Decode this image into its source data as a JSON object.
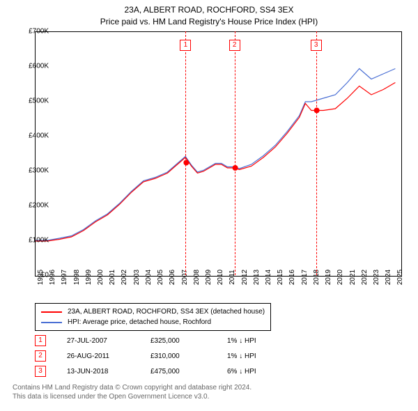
{
  "title": {
    "line1": "23A, ALBERT ROAD, ROCHFORD, SS4 3EX",
    "line2": "Price paid vs. HM Land Registry's House Price Index (HPI)"
  },
  "chart": {
    "type": "line",
    "background_color": "#ffffff",
    "border_color": "#000000",
    "xlim": [
      1995,
      2025.5
    ],
    "ylim": [
      0,
      700000
    ],
    "ytick_step": 100000,
    "y_labels": [
      "£0",
      "£100K",
      "£200K",
      "£300K",
      "£400K",
      "£500K",
      "£600K",
      "£700K"
    ],
    "x_labels": [
      "1995",
      "1996",
      "1997",
      "1998",
      "1999",
      "2000",
      "2001",
      "2002",
      "2003",
      "2004",
      "2005",
      "2006",
      "2007",
      "2008",
      "2009",
      "2010",
      "2011",
      "2012",
      "2013",
      "2014",
      "2015",
      "2016",
      "2017",
      "2018",
      "2019",
      "2020",
      "2021",
      "2022",
      "2023",
      "2024",
      "2025"
    ],
    "label_fontsize": 10,
    "series": [
      {
        "name": "price_paid",
        "label": "23A, ALBERT ROAD, ROCHFORD, SS4 3EX (detached house)",
        "color": "#ff0000",
        "line_width": 1.2,
        "x": [
          1995,
          1996,
          1997,
          1998,
          1999,
          2000,
          2001,
          2002,
          2003,
          2004,
          2005,
          2006,
          2007,
          2007.5,
          2008,
          2008.5,
          2009,
          2010,
          2010.5,
          2011,
          2011.5,
          2012,
          2013,
          2014,
          2015,
          2016,
          2017,
          2017.5,
          2018,
          2018.5,
          2019,
          2020,
          2021,
          2022,
          2023,
          2024,
          2025
        ],
        "y": [
          100000,
          100000,
          105000,
          112000,
          130000,
          155000,
          175000,
          205000,
          240000,
          270000,
          280000,
          295000,
          325000,
          340000,
          315000,
          295000,
          300000,
          320000,
          320000,
          310000,
          310000,
          305000,
          315000,
          340000,
          370000,
          410000,
          455000,
          495000,
          475000,
          475000,
          475000,
          480000,
          510000,
          545000,
          520000,
          535000,
          555000
        ]
      },
      {
        "name": "hpi",
        "label": "HPI: Average price, detached house, Rochford",
        "color": "#4a6fd4",
        "line_width": 1.2,
        "x": [
          1995,
          1996,
          1997,
          1998,
          1999,
          2000,
          2001,
          2002,
          2003,
          2004,
          2005,
          2006,
          2007,
          2007.5,
          2008,
          2008.5,
          2009,
          2010,
          2010.5,
          2011,
          2011.5,
          2012,
          2013,
          2014,
          2015,
          2016,
          2017,
          2017.5,
          2018,
          2018.5,
          2019,
          2020,
          2021,
          2022,
          2023,
          2024,
          2025
        ],
        "y": [
          102000,
          102000,
          108000,
          115000,
          133000,
          158000,
          178000,
          208000,
          243000,
          273000,
          283000,
          298000,
          328000,
          343000,
          318000,
          298000,
          303000,
          323000,
          323000,
          313000,
          313000,
          308000,
          320000,
          345000,
          375000,
          415000,
          460000,
          500000,
          500000,
          505000,
          510000,
          520000,
          555000,
          595000,
          565000,
          580000,
          595000
        ]
      }
    ],
    "sale_points": [
      {
        "x": 2007.57,
        "y": 325000,
        "color": "#ff0000"
      },
      {
        "x": 2011.65,
        "y": 310000,
        "color": "#ff0000"
      },
      {
        "x": 2018.45,
        "y": 475000,
        "color": "#ff0000"
      }
    ],
    "event_markers": [
      {
        "num": "1",
        "x": 2007.57
      },
      {
        "num": "2",
        "x": 2011.65
      },
      {
        "num": "3",
        "x": 2018.45
      }
    ]
  },
  "legend": {
    "items": [
      {
        "color": "#ff0000",
        "label": "23A, ALBERT ROAD, ROCHFORD, SS4 3EX (detached house)"
      },
      {
        "color": "#4a6fd4",
        "label": "HPI: Average price, detached house, Rochford"
      }
    ]
  },
  "events": [
    {
      "num": "1",
      "date": "27-JUL-2007",
      "price": "£325,000",
      "delta": "1% ↓ HPI"
    },
    {
      "num": "2",
      "date": "26-AUG-2011",
      "price": "£310,000",
      "delta": "1% ↓ HPI"
    },
    {
      "num": "3",
      "date": "13-JUN-2018",
      "price": "£475,000",
      "delta": "6% ↓ HPI"
    }
  ],
  "footer": {
    "line1": "Contains HM Land Registry data © Crown copyright and database right 2024.",
    "line2": "This data is licensed under the Open Government Licence v3.0."
  },
  "colors": {
    "marker_border": "#ff0000",
    "footer_text": "#666666"
  }
}
